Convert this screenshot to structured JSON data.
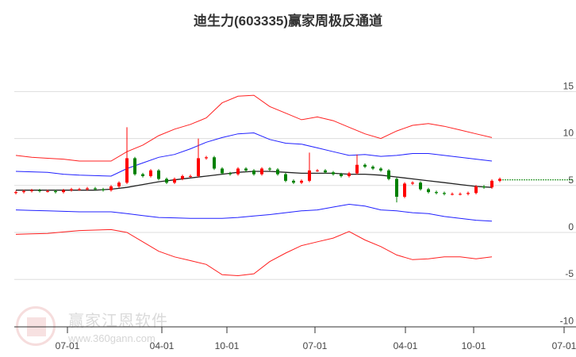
{
  "chart_data": {
    "type": "candlestick",
    "title": "迪生力(603335)赢家周极反通道",
    "ylim": [
      -10,
      17
    ],
    "yticks": [
      15,
      10,
      5,
      0,
      -5,
      -10
    ],
    "xtick_labels": [
      "07-01",
      "04-01",
      "10-01",
      "07-01",
      "04-01",
      "10-01",
      "07-01"
    ],
    "grid": true,
    "closes": [
      4.3,
      4.4,
      4.5,
      4.4,
      4.4,
      4.3,
      4.5,
      4.6,
      4.6,
      4.7,
      4.6,
      4.5,
      4.9,
      5.3,
      7.9,
      6.2,
      6.0,
      6.6,
      5.7,
      5.3,
      5.7,
      6.0,
      6.0,
      7.9,
      8.0,
      6.8,
      6.3,
      6.2,
      6.8,
      6.6,
      6.2,
      6.8,
      6.7,
      6.2,
      5.5,
      5.3,
      5.5,
      6.6,
      6.6,
      6.4,
      6.2,
      6.0,
      6.3,
      7.2,
      7.0,
      6.8,
      6.6,
      5.7,
      3.8,
      5.2,
      5.3,
      4.6,
      4.3,
      4.2,
      4.1,
      4.1,
      4.1,
      4.2,
      4.9,
      4.8,
      5.5,
      5.7
    ],
    "spikes": [
      {
        "index": 14,
        "high": 11.2
      },
      {
        "index": 23,
        "high": 10.0
      },
      {
        "index": 37,
        "high": 8.5
      },
      {
        "index": 43,
        "high": 8.3
      },
      {
        "index": 48,
        "low": 3.2
      }
    ],
    "last_price_line": 5.6,
    "series": [
      {
        "name": "outer-upper",
        "color": "#ff2020",
        "values": [
          8.2,
          8.0,
          7.9,
          7.8,
          7.6,
          7.6,
          7.6,
          8.6,
          9.3,
          10.3,
          11.0,
          11.5,
          12.2,
          13.8,
          14.5,
          14.6,
          13.4,
          12.7,
          12.0,
          12.3,
          11.9,
          11.2,
          10.5,
          10.0,
          10.8,
          11.4,
          11.6,
          11.3,
          10.9,
          10.5,
          10.1
        ]
      },
      {
        "name": "inner-upper",
        "color": "#2020ff",
        "values": [
          6.5,
          6.45,
          6.4,
          6.2,
          6.1,
          6.05,
          6.0,
          6.8,
          7.4,
          8.0,
          8.3,
          8.9,
          9.6,
          10.1,
          10.5,
          10.6,
          9.9,
          9.5,
          9.4,
          9.0,
          8.6,
          8.2,
          8.3,
          8.1,
          8.2,
          8.4,
          8.4,
          8.2,
          8.0,
          7.8,
          7.6
        ]
      },
      {
        "name": "middle",
        "color": "#222222",
        "values": [
          4.5,
          4.5,
          4.5,
          4.5,
          4.5,
          4.5,
          4.6,
          4.8,
          5.1,
          5.4,
          5.6,
          5.8,
          6.0,
          6.2,
          6.4,
          6.5,
          6.5,
          6.4,
          6.3,
          6.3,
          6.3,
          6.2,
          6.2,
          6.1,
          5.9,
          5.7,
          5.5,
          5.3,
          5.1,
          4.9,
          4.8
        ]
      },
      {
        "name": "inner-lower",
        "color": "#2020ff",
        "values": [
          2.4,
          2.35,
          2.3,
          2.25,
          2.2,
          2.2,
          2.2,
          2.0,
          1.8,
          1.6,
          1.55,
          1.5,
          1.5,
          1.5,
          1.6,
          1.75,
          1.9,
          2.1,
          2.3,
          2.4,
          2.7,
          3.0,
          2.8,
          2.4,
          2.3,
          2.1,
          2.0,
          1.7,
          1.5,
          1.3,
          1.2
        ]
      },
      {
        "name": "outer-lower",
        "color": "#ff2020",
        "values": [
          -0.2,
          -0.15,
          -0.1,
          0.05,
          0.2,
          0.25,
          0.3,
          0.0,
          -1.0,
          -2.0,
          -2.6,
          -3.0,
          -3.4,
          -4.5,
          -4.6,
          -4.4,
          -3.1,
          -2.2,
          -1.4,
          -1.0,
          -0.6,
          0.1,
          -0.8,
          -1.5,
          -2.4,
          -2.9,
          -2.8,
          -2.6,
          -2.6,
          -2.8,
          -2.6
        ]
      }
    ],
    "colors": {
      "up": "#ff0000",
      "down": "#008000",
      "grid": "#dddddd"
    }
  },
  "watermark": {
    "name": "赢家江恩软件",
    "url": "www.360gann.com",
    "seal": "江恩赢家"
  }
}
